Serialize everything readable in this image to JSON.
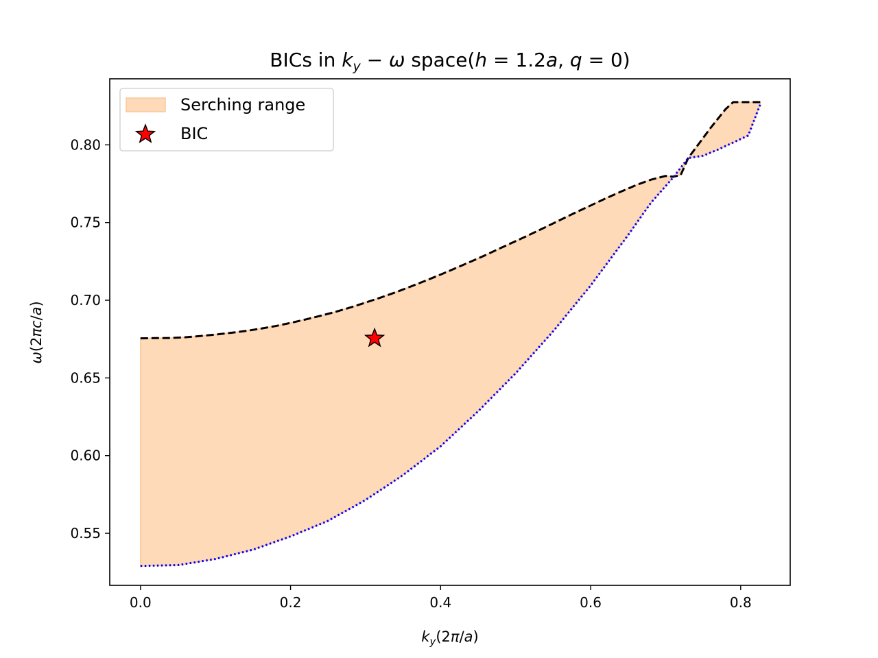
{
  "chart_data": {
    "type": "area",
    "title": "BICs in k_y − ω space(h = 1.2a, q = 0)",
    "title_parts": {
      "prefix": "BICs in ",
      "ky_sym": "k",
      "ky_sub": "y",
      "op": " − ",
      "omega": "ω",
      "mid": " space(",
      "h_sym": "h",
      "h_val": " = 1.2",
      "a_sym": "a",
      "sep": ", ",
      "q_sym": "q",
      "q_val": " = 0)"
    },
    "xlabel": "k_y(2π/a)",
    "xlabel_parts": {
      "sym": "k",
      "sub": "y",
      "open": "(2",
      "pi": "π",
      "slash": "/",
      "a": "a",
      "close": ")"
    },
    "ylabel": "ω(2πc/a)",
    "ylabel_parts": {
      "omega": "ω",
      "open": "(2",
      "pi": "π",
      "c": "c",
      "slash": "/",
      "a": "a",
      "close": ")"
    },
    "xlim": [
      -0.041,
      0.866
    ],
    "ylim": [
      0.5165,
      0.8425
    ],
    "xticks": [
      0.0,
      0.2,
      0.4,
      0.6,
      0.8
    ],
    "xtick_labels": [
      "0.0",
      "0.2",
      "0.4",
      "0.6",
      "0.8"
    ],
    "yticks": [
      0.55,
      0.6,
      0.65,
      0.7,
      0.75,
      0.8
    ],
    "ytick_labels": [
      "0.55",
      "0.60",
      "0.65",
      "0.70",
      "0.75",
      "0.80"
    ],
    "grid": false,
    "legend_position": "top-left",
    "series": [
      {
        "name": "Serching range",
        "kind": "fill",
        "color": "#ffdab9",
        "edge_color": "#f9c79a"
      },
      {
        "kind": "upper-bound",
        "style": "dashed",
        "color": "#000000",
        "x": [
          0.0,
          0.02,
          0.04,
          0.06,
          0.08,
          0.1,
          0.12,
          0.14,
          0.16,
          0.18,
          0.2,
          0.22,
          0.24,
          0.26,
          0.28,
          0.3,
          0.32,
          0.34,
          0.36,
          0.38,
          0.4,
          0.42,
          0.44,
          0.46,
          0.48,
          0.5,
          0.52,
          0.54,
          0.56,
          0.58,
          0.6,
          0.62,
          0.64,
          0.66,
          0.68,
          0.7,
          0.71,
          0.72,
          0.73,
          0.74,
          0.76,
          0.78,
          0.79,
          0.81,
          0.826
        ],
        "y": [
          0.6755,
          0.6756,
          0.6757,
          0.6762,
          0.677,
          0.6779,
          0.679,
          0.6802,
          0.6817,
          0.6834,
          0.6854,
          0.6876,
          0.69,
          0.6925,
          0.6954,
          0.6985,
          0.7017,
          0.7051,
          0.7088,
          0.7126,
          0.7165,
          0.7206,
          0.7248,
          0.7291,
          0.7336,
          0.738,
          0.7425,
          0.7471,
          0.7518,
          0.7565,
          0.761,
          0.7655,
          0.7698,
          0.774,
          0.7775,
          0.78,
          0.7795,
          0.7805,
          0.7915,
          0.798,
          0.811,
          0.823,
          0.8275,
          0.8275,
          0.8275
        ]
      },
      {
        "kind": "lower-bound",
        "style": "dotted",
        "color": "#0000ff",
        "x": [
          0.0,
          0.05,
          0.1,
          0.15,
          0.2,
          0.25,
          0.3,
          0.35,
          0.4,
          0.45,
          0.5,
          0.55,
          0.6,
          0.65,
          0.68,
          0.71,
          0.73,
          0.75,
          0.77,
          0.79,
          0.81,
          0.826
        ],
        "y": [
          0.529,
          0.5295,
          0.5335,
          0.5395,
          0.548,
          0.558,
          0.5715,
          0.5875,
          0.606,
          0.6285,
          0.653,
          0.68,
          0.7095,
          0.742,
          0.7625,
          0.779,
          0.7915,
          0.793,
          0.797,
          0.8015,
          0.806,
          0.826
        ]
      },
      {
        "name": "BIC",
        "kind": "marker",
        "marker": "star",
        "color": "#ff0000",
        "x": [
          0.312
        ],
        "y": [
          0.6755
        ]
      }
    ]
  }
}
